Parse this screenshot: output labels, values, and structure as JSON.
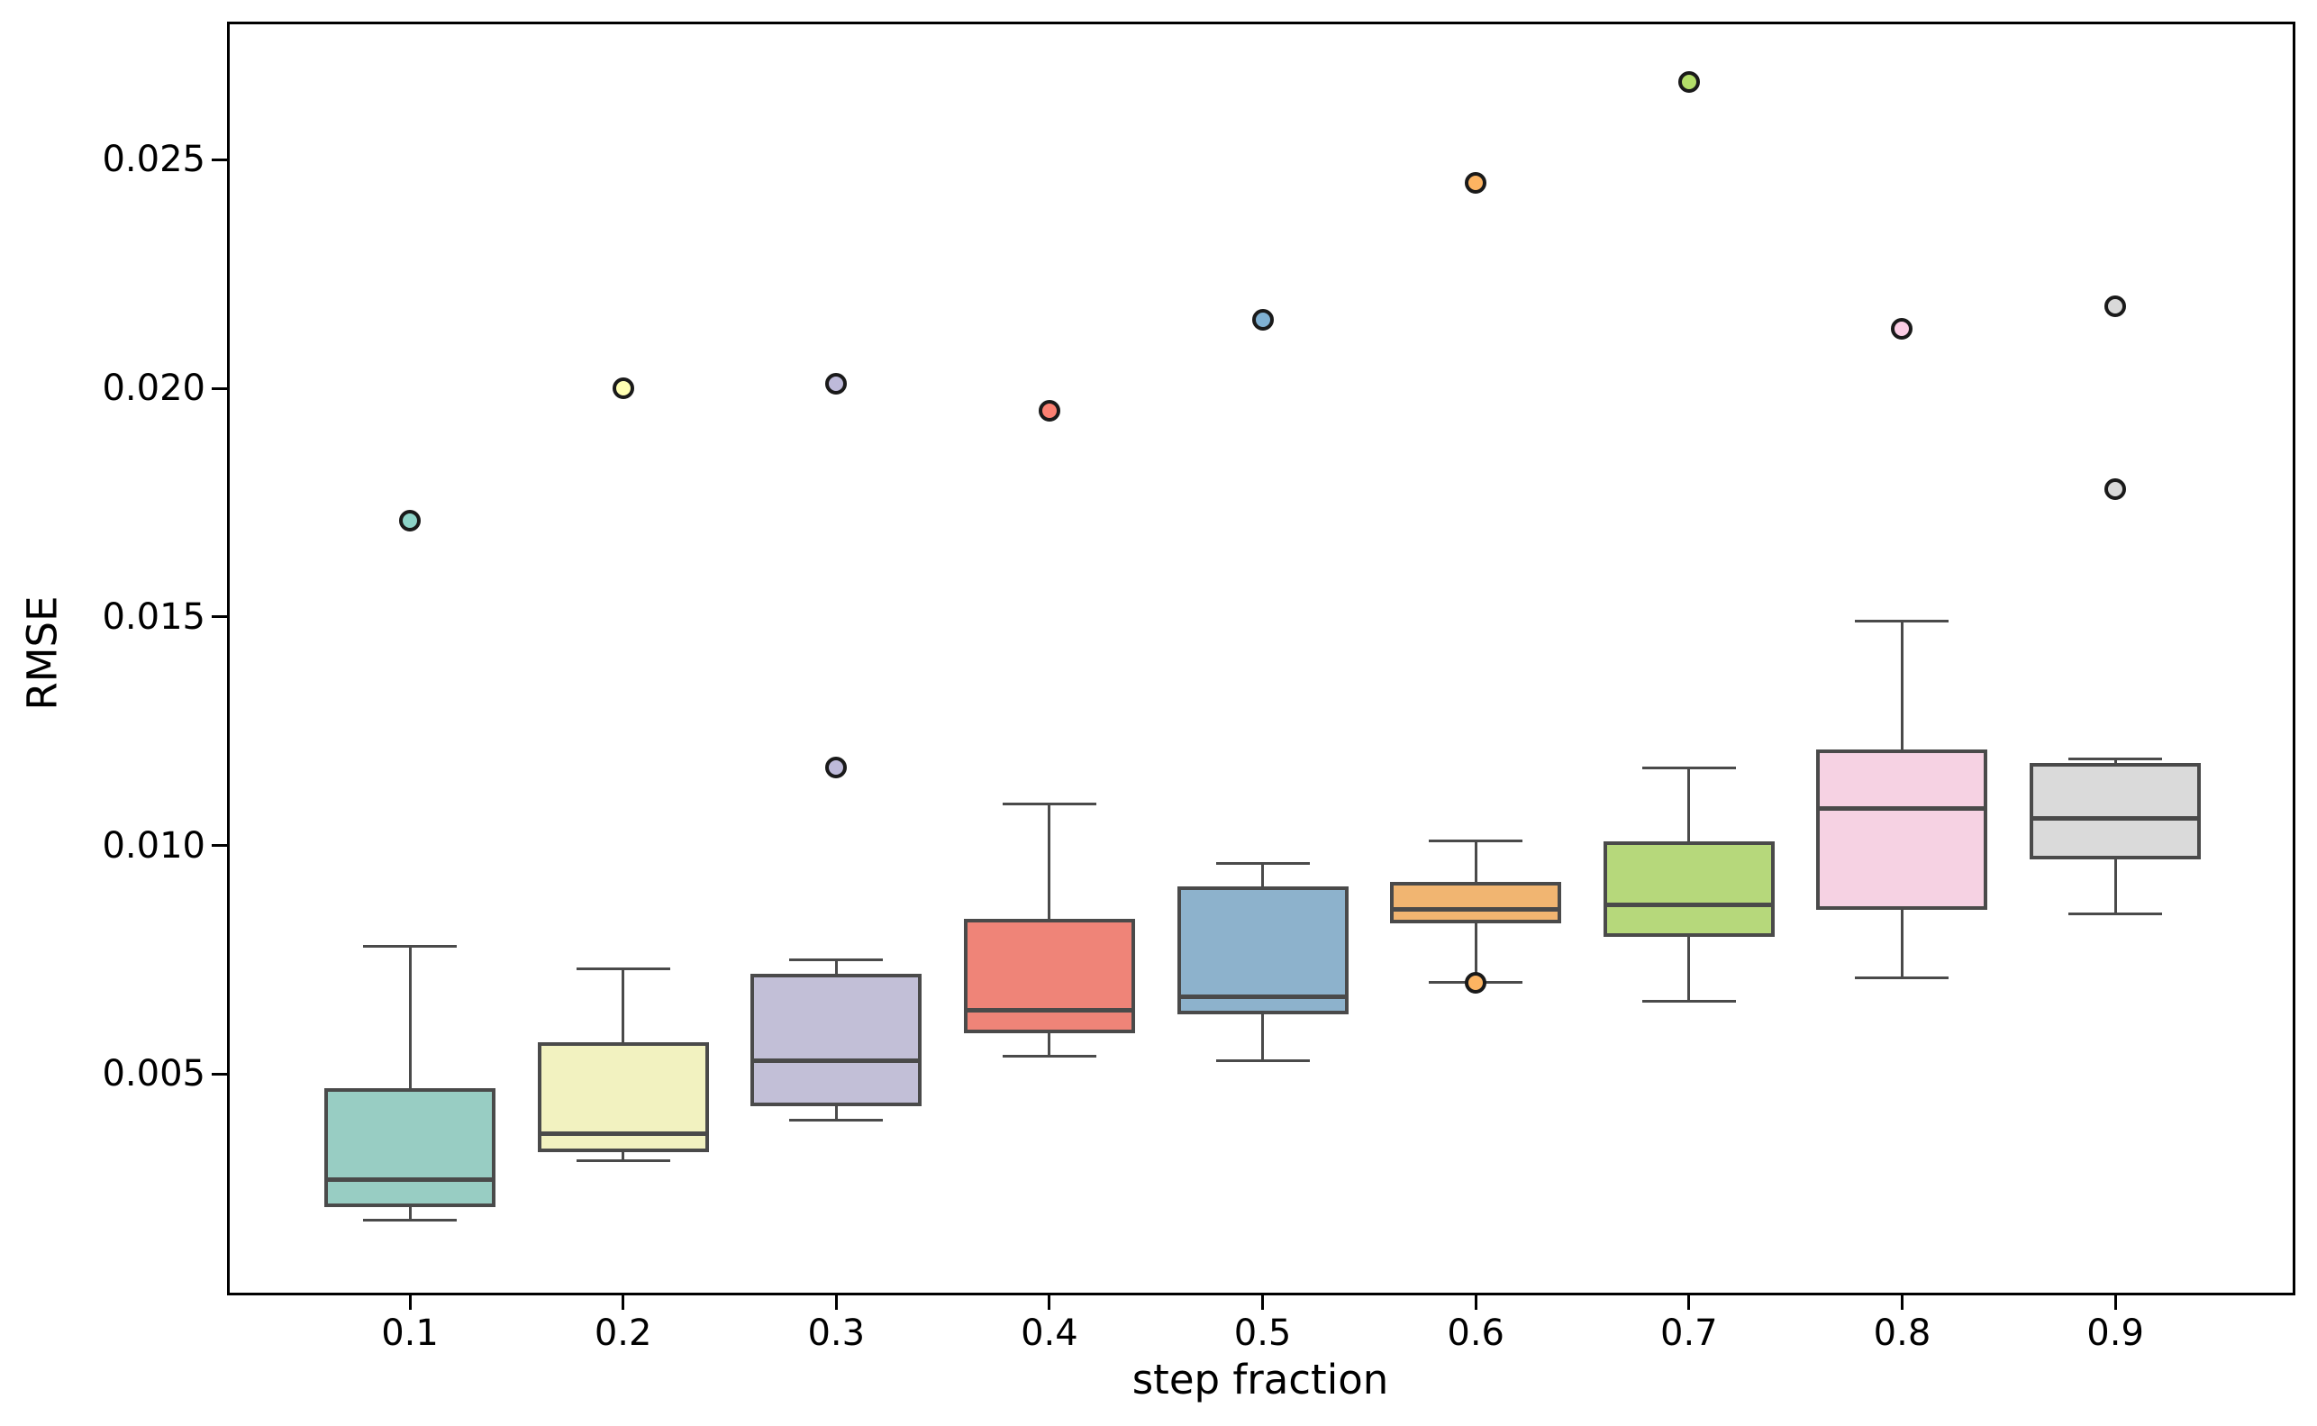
{
  "figure": {
    "background": "#ffffff"
  },
  "chart_data": {
    "type": "boxplot",
    "title": "",
    "xlabel": "step fraction",
    "ylabel": "RMSE",
    "categories": [
      "0.1",
      "0.2",
      "0.3",
      "0.4",
      "0.5",
      "0.6",
      "0.7",
      "0.8",
      "0.9"
    ],
    "y_ticks": [
      0.005,
      0.01,
      0.015,
      0.02,
      0.025
    ],
    "y_tick_labels": [
      "0.005",
      "0.010",
      "0.015",
      "0.020",
      "0.025"
    ],
    "ylim": [
      0.0002,
      0.028
    ],
    "grid": false,
    "legend": null,
    "line_color": "#4a4a4a",
    "flier_edge_color": "#1a1a1a",
    "series": [
      {
        "category": "0.1",
        "q1": 0.0021,
        "median": 0.0027,
        "q3": 0.0047,
        "whisker_low": 0.0018,
        "whisker_high": 0.0078,
        "fliers": [
          0.0171
        ],
        "box_color": "#98cdc3",
        "flier_color": "#8dd3c7"
      },
      {
        "category": "0.2",
        "q1": 0.0033,
        "median": 0.0037,
        "q3": 0.0057,
        "whisker_low": 0.0031,
        "whisker_high": 0.0073,
        "fliers": [
          0.02
        ],
        "box_color": "#f2f2c0",
        "flier_color": "#ffffb3"
      },
      {
        "category": "0.3",
        "q1": 0.0043,
        "median": 0.0053,
        "q3": 0.0072,
        "whisker_low": 0.004,
        "whisker_high": 0.0075,
        "fliers": [
          0.0201,
          0.0117
        ],
        "box_color": "#c2bfd7",
        "flier_color": "#bebada"
      },
      {
        "category": "0.4",
        "q1": 0.0059,
        "median": 0.0064,
        "q3": 0.0084,
        "whisker_low": 0.0054,
        "whisker_high": 0.0109,
        "fliers": [
          0.0195
        ],
        "box_color": "#ef8478",
        "flier_color": "#fb8072"
      },
      {
        "category": "0.5",
        "q1": 0.0063,
        "median": 0.0067,
        "q3": 0.0091,
        "whisker_low": 0.0053,
        "whisker_high": 0.0096,
        "fliers": [
          0.0215
        ],
        "box_color": "#8db2cc",
        "flier_color": "#80b1d3"
      },
      {
        "category": "0.6",
        "q1": 0.0083,
        "median": 0.0086,
        "q3": 0.0092,
        "whisker_low": 0.007,
        "whisker_high": 0.0101,
        "fliers": [
          0.0245,
          0.007
        ],
        "box_color": "#f1b571",
        "flier_color": "#fdb462"
      },
      {
        "category": "0.7",
        "q1": 0.008,
        "median": 0.0087,
        "q3": 0.0101,
        "whisker_low": 0.0066,
        "whisker_high": 0.0117,
        "fliers": [
          0.0267
        ],
        "box_color": "#b6d87b",
        "flier_color": "#b3de69"
      },
      {
        "category": "0.8",
        "q1": 0.0086,
        "median": 0.0108,
        "q3": 0.0121,
        "whisker_low": 0.0071,
        "whisker_high": 0.0149,
        "fliers": [
          0.0213
        ],
        "box_color": "#f6d2e3",
        "flier_color": "#fccde5"
      },
      {
        "category": "0.9",
        "q1": 0.0097,
        "median": 0.0106,
        "q3": 0.0118,
        "whisker_low": 0.0085,
        "whisker_high": 0.0119,
        "fliers": [
          0.0218,
          0.0178
        ],
        "box_color": "#dadada",
        "flier_color": "#d9d9d9"
      }
    ]
  }
}
